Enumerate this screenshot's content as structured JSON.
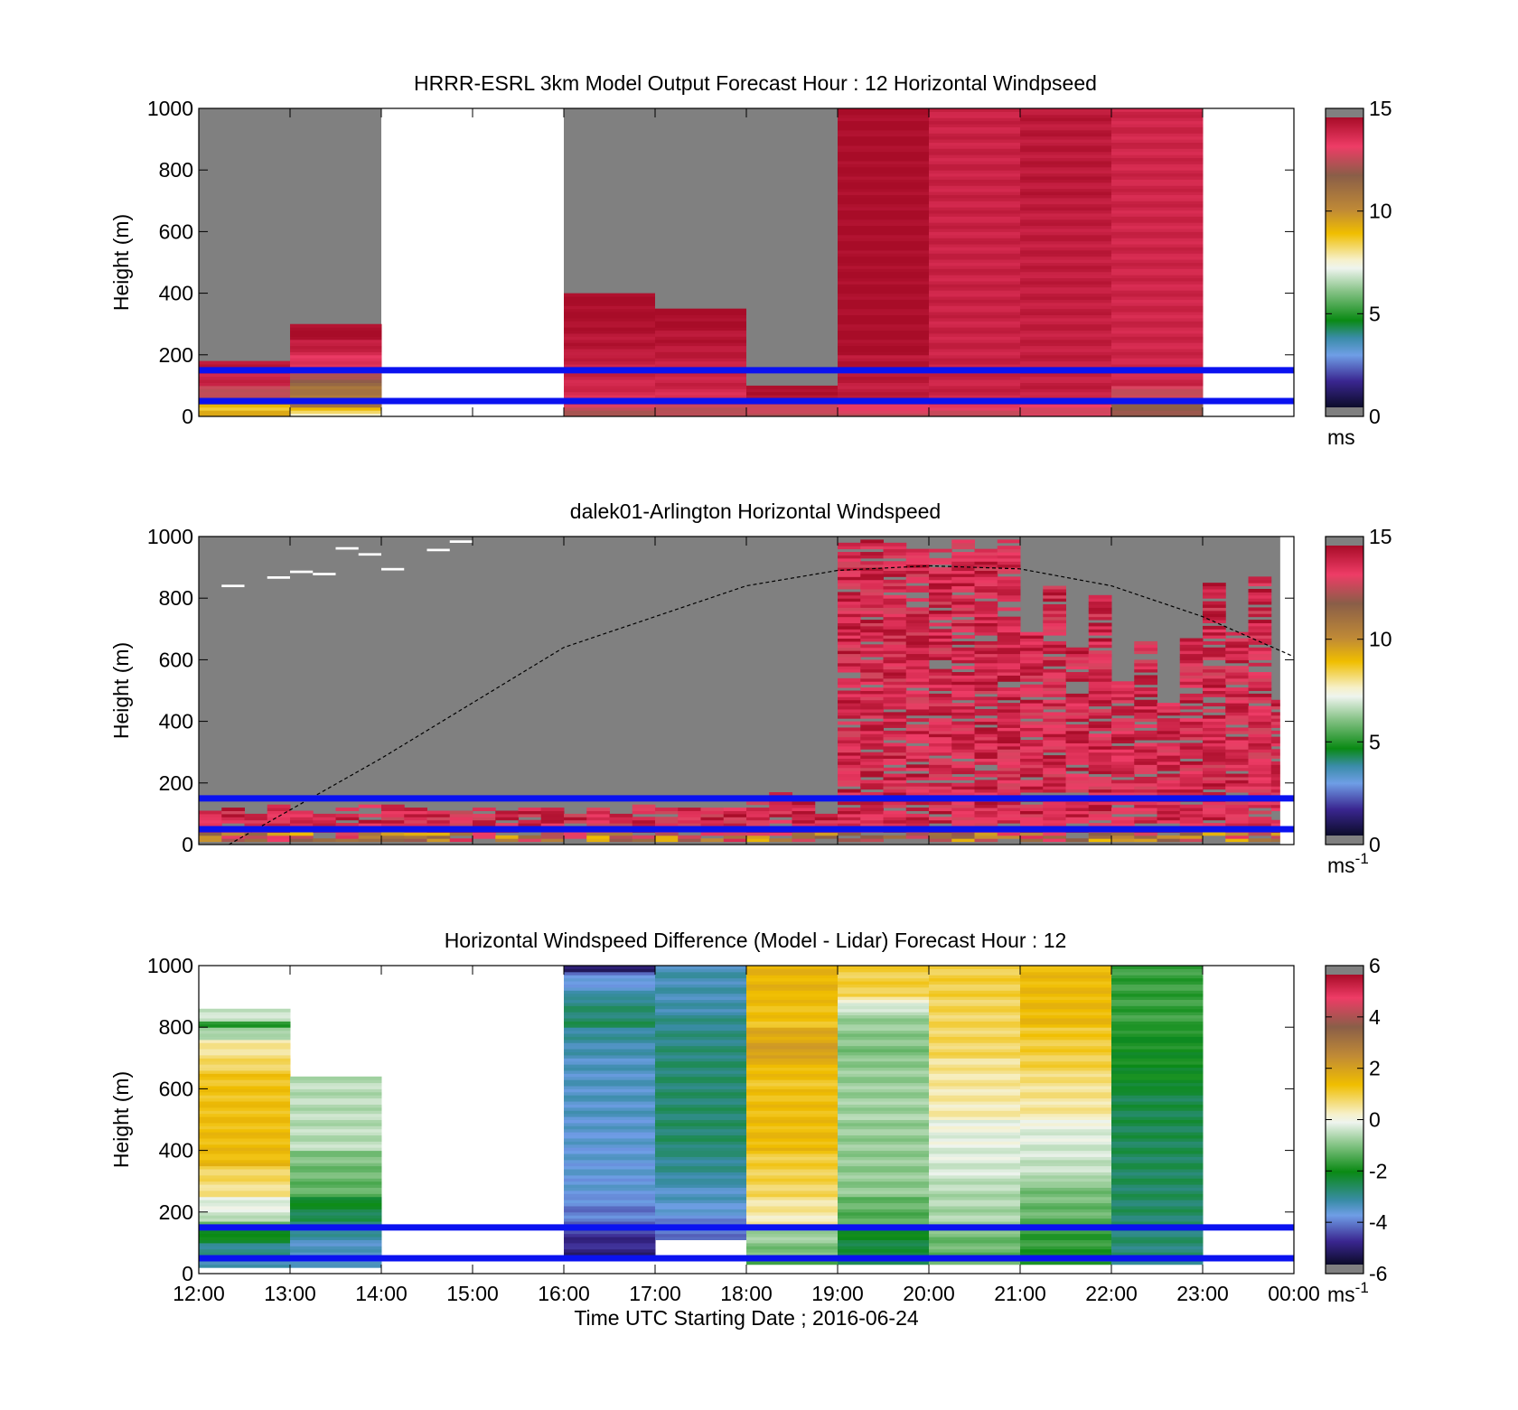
{
  "figure": {
    "xlabel": "Time UTC  Starting Date ; 2016-06-24",
    "x_ticks": [
      "12:00",
      "13:00",
      "14:00",
      "15:00",
      "16:00",
      "17:00",
      "18:00",
      "19:00",
      "20:00",
      "21:00",
      "22:00",
      "23:00",
      "00:00"
    ]
  },
  "chart_data": [
    {
      "type": "heatmap",
      "title": "HRRR-ESRL 3km Model Output   Forecast Hour : 12 Horizontal Windpseed",
      "ylabel": "Height (m)",
      "y_ticks": [
        "0",
        "200",
        "400",
        "600",
        "800",
        "1000"
      ],
      "xlim_hours": [
        12,
        24
      ],
      "ylim": [
        0,
        1000
      ],
      "colorbar": {
        "ticks": [
          "0",
          "5",
          "10",
          "15"
        ],
        "range": [
          0,
          15
        ],
        "unit": "ms",
        "unit_exp": ""
      },
      "reference_lines_m": [
        50,
        150
      ],
      "no_data_color": "#808080",
      "columns": [
        {
          "t0": 12,
          "t1": 13,
          "profile": [
            [
              0,
              20,
              9.5
            ],
            [
              20,
              40,
              8.5
            ],
            [
              40,
              60,
              12
            ],
            [
              60,
              100,
              12.5
            ],
            [
              100,
              140,
              14.2
            ],
            [
              140,
              180,
              14.5
            ]
          ]
        },
        {
          "t0": 13,
          "t1": 14,
          "profile": [
            [
              0,
              30,
              7.8
            ],
            [
              30,
              60,
              11
            ],
            [
              60,
              100,
              10.8
            ],
            [
              100,
              140,
              11.8
            ],
            [
              140,
              200,
              13.5
            ],
            [
              200,
              250,
              14.2
            ],
            [
              250,
              300,
              15
            ]
          ]
        },
        {
          "t0": 16,
          "t1": 17,
          "profile": [
            [
              0,
              40,
              12.5
            ],
            [
              40,
              100,
              14
            ],
            [
              100,
              200,
              14.2
            ],
            [
              200,
              300,
              14.6
            ],
            [
              300,
              400,
              15
            ]
          ]
        },
        {
          "t0": 17,
          "t1": 18,
          "profile": [
            [
              0,
              40,
              12.5
            ],
            [
              40,
              100,
              14
            ],
            [
              100,
              200,
              14.3
            ],
            [
              200,
              300,
              14.6
            ],
            [
              300,
              350,
              15
            ]
          ]
        },
        {
          "t0": 18,
          "t1": 19,
          "profile": [
            [
              0,
              40,
              12.5
            ],
            [
              40,
              70,
              14.2
            ],
            [
              70,
              100,
              15
            ]
          ]
        },
        {
          "t0": 19,
          "t1": 20,
          "profile": [
            [
              0,
              40,
              13
            ],
            [
              40,
              200,
              14.4
            ],
            [
              200,
              1000,
              15
            ]
          ]
        },
        {
          "t0": 20,
          "t1": 21,
          "profile": [
            [
              0,
              40,
              13
            ],
            [
              40,
              1000,
              14.3
            ]
          ]
        },
        {
          "t0": 21,
          "t1": 22,
          "profile": [
            [
              0,
              40,
              13
            ],
            [
              40,
              700,
              14.4
            ],
            [
              700,
              1000,
              14.6
            ]
          ]
        },
        {
          "t0": 22,
          "t1": 23,
          "profile": [
            [
              0,
              40,
              12
            ],
            [
              40,
              100,
              12.5
            ],
            [
              100,
              1000,
              14.2
            ]
          ]
        }
      ]
    },
    {
      "type": "heatmap",
      "title": "dalek01-Arlington  Horizontal Windspeed",
      "ylabel": "Height (m)",
      "y_ticks": [
        "0",
        "200",
        "400",
        "600",
        "800",
        "1000"
      ],
      "xlim_hours": [
        12,
        24
      ],
      "ylim": [
        0,
        1000
      ],
      "colorbar": {
        "ticks": [
          "0",
          "5",
          "10",
          "15"
        ],
        "range": [
          0,
          15
        ],
        "unit": "ms",
        "unit_exp": "-1"
      },
      "reference_lines_m": [
        50,
        150
      ],
      "no_data_color": "#808080",
      "time_step_minutes": 15,
      "sun_curve": {
        "x_hours": [
          12.33,
          14,
          16,
          18,
          19,
          20,
          21,
          22,
          23,
          24
        ],
        "y_m": [
          0,
          280,
          640,
          840,
          890,
          905,
          895,
          840,
          740,
          610
        ]
      }
    },
    {
      "type": "heatmap",
      "title": "Horizontal Windspeed Difference (Model - Lidar) Forecast Hour : 12",
      "ylabel": "Height (m)",
      "y_ticks": [
        "0",
        "200",
        "400",
        "600",
        "800",
        "1000"
      ],
      "xlim_hours": [
        12,
        24
      ],
      "ylim": [
        0,
        1000
      ],
      "colorbar": {
        "ticks": [
          "-6",
          "-4",
          "-2",
          "0",
          "2",
          "4",
          "6"
        ],
        "range": [
          -6,
          6
        ],
        "unit": "ms",
        "unit_exp": "-1"
      },
      "reference_lines_m": [
        50,
        150
      ],
      "columns": [
        {
          "t0": 12,
          "t1": 13,
          "profile": [
            [
              20,
              100,
              -3.5
            ],
            [
              100,
              170,
              -2.5
            ],
            [
              170,
              250,
              -0.5
            ],
            [
              250,
              350,
              0.5
            ],
            [
              350,
              650,
              1.5
            ],
            [
              650,
              760,
              1
            ],
            [
              760,
              800,
              -0.5
            ],
            [
              800,
              820,
              -2
            ],
            [
              820,
              860,
              -0.5
            ]
          ]
        },
        {
          "t0": 13,
          "t1": 14,
          "profile": [
            [
              20,
              100,
              -3.8
            ],
            [
              100,
              170,
              -3.5
            ],
            [
              170,
              250,
              -2.8
            ],
            [
              250,
              400,
              -1.5
            ],
            [
              400,
              640,
              -0.6
            ]
          ]
        },
        {
          "t0": 16,
          "t1": 17,
          "profile": [
            [
              60,
              150,
              -5.2
            ],
            [
              150,
              250,
              -4.4
            ],
            [
              250,
              500,
              -3.9
            ],
            [
              500,
              700,
              -3.7
            ],
            [
              700,
              800,
              -3.6
            ],
            [
              800,
              900,
              -2.8
            ],
            [
              900,
              980,
              -3.5
            ],
            [
              980,
              1000,
              -5.3
            ]
          ]
        },
        {
          "t0": 17,
          "t1": 18,
          "profile": [
            [
              110,
              200,
              -4.3
            ],
            [
              200,
              300,
              -3.8
            ],
            [
              300,
              400,
              -3.3
            ],
            [
              400,
              700,
              -2.9
            ],
            [
              700,
              850,
              -3
            ],
            [
              850,
              1000,
              -3.5
            ]
          ]
        },
        {
          "t0": 18,
          "t1": 19,
          "profile": [
            [
              30,
              150,
              -1.5
            ],
            [
              150,
              250,
              0.3
            ],
            [
              250,
              400,
              0.8
            ],
            [
              400,
              600,
              1.5
            ],
            [
              600,
              700,
              1.2
            ],
            [
              700,
              800,
              2.2
            ],
            [
              800,
              900,
              1.3
            ],
            [
              900,
              1000,
              1.6
            ]
          ]
        },
        {
          "t0": 19,
          "t1": 20,
          "profile": [
            [
              30,
              150,
              -2.8
            ],
            [
              150,
              250,
              -1.6
            ],
            [
              250,
              500,
              -1
            ],
            [
              500,
              700,
              -0.8
            ],
            [
              700,
              850,
              -1.2
            ],
            [
              850,
              900,
              -0.4
            ],
            [
              900,
              1000,
              1
            ]
          ]
        },
        {
          "t0": 20,
          "t1": 21,
          "profile": [
            [
              30,
              150,
              -1.5
            ],
            [
              150,
              300,
              -0.8
            ],
            [
              300,
              500,
              -0.4
            ],
            [
              500,
              700,
              0.3
            ],
            [
              700,
              900,
              0.8
            ],
            [
              900,
              1000,
              1
            ]
          ]
        },
        {
          "t0": 21,
          "t1": 22,
          "profile": [
            [
              30,
              150,
              -2
            ],
            [
              150,
              300,
              -1.5
            ],
            [
              300,
              500,
              -0.6
            ],
            [
              500,
              650,
              0.4
            ],
            [
              650,
              800,
              0.9
            ],
            [
              800,
              1000,
              1.5
            ]
          ]
        },
        {
          "t0": 22,
          "t1": 23,
          "profile": [
            [
              30,
              150,
              -3
            ],
            [
              150,
              600,
              -2.9
            ],
            [
              600,
              800,
              -2.3
            ],
            [
              800,
              1000,
              -1.8
            ]
          ]
        }
      ]
    }
  ]
}
